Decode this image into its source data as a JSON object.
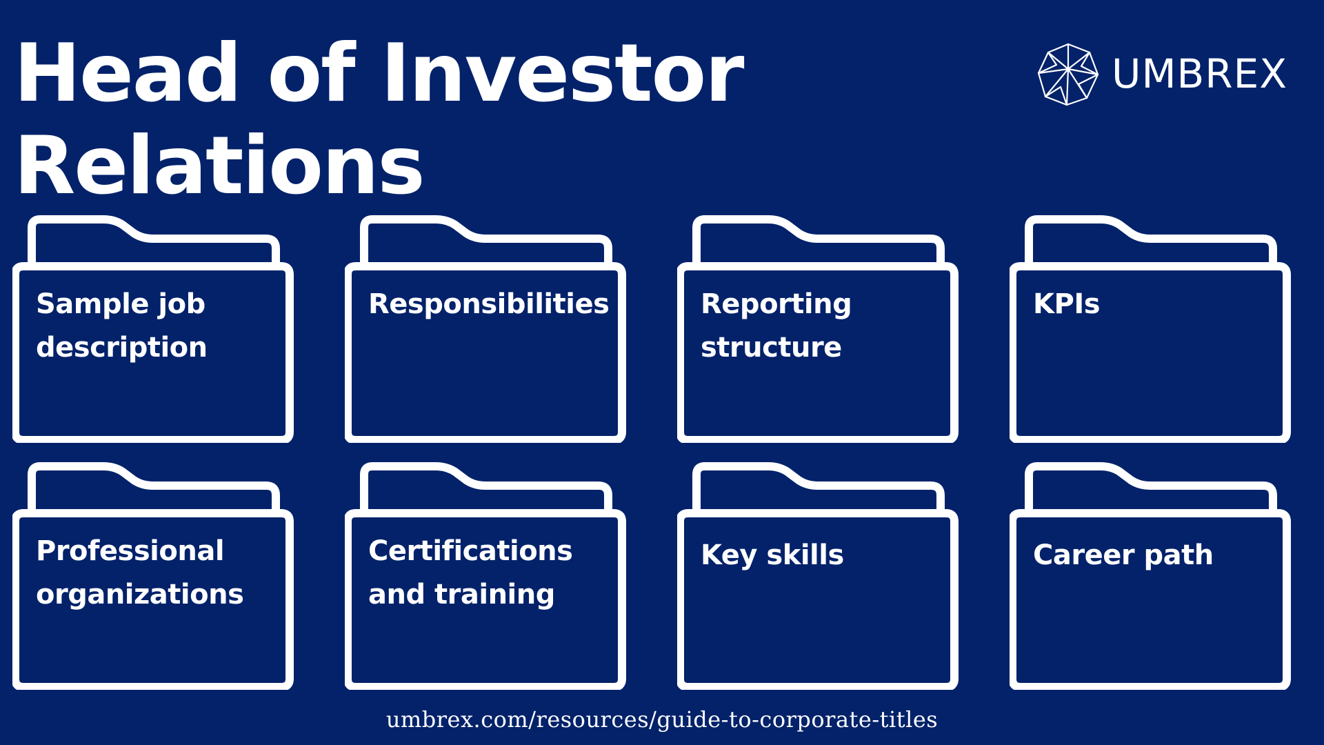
{
  "header": {
    "title": "Head of Investor Relations"
  },
  "logo": {
    "name": "UMBREX",
    "icon": "umbrex-logo-icon"
  },
  "folders": [
    {
      "label": "Sample job description",
      "icon": "folder-icon"
    },
    {
      "label": "Responsibilities",
      "icon": "folder-icon"
    },
    {
      "label": "Reporting structure",
      "icon": "folder-icon"
    },
    {
      "label": "KPIs",
      "icon": "folder-icon"
    },
    {
      "label": "Professional organizations",
      "icon": "folder-icon"
    },
    {
      "label": "Certifications and training",
      "icon": "folder-icon"
    },
    {
      "label": "Key skills",
      "icon": "folder-icon"
    },
    {
      "label": "Career path",
      "icon": "folder-icon"
    }
  ],
  "footer": {
    "url": "umbrex.com/resources/guide-to-corporate-titles"
  },
  "colors": {
    "background": "#03226a",
    "foreground": "#ffffff"
  }
}
